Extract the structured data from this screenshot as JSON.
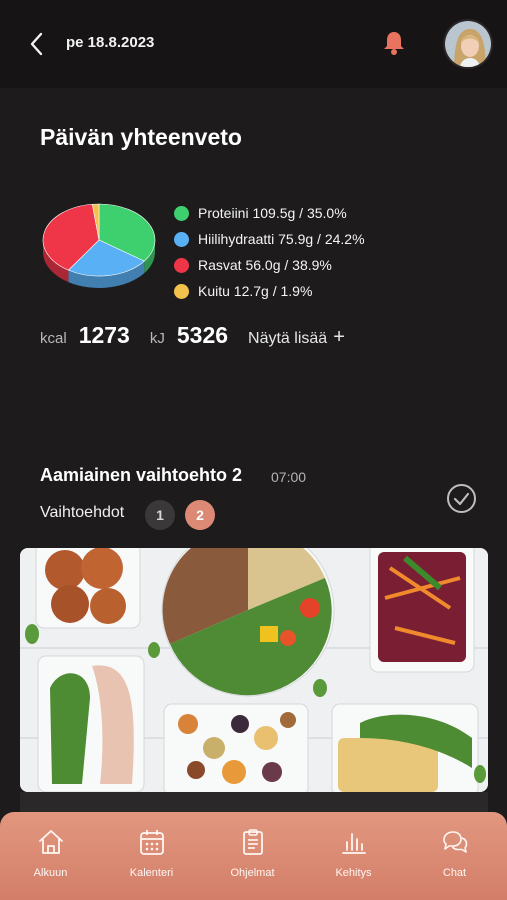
{
  "header": {
    "date": "pe 18.8.2023"
  },
  "summary": {
    "title": "Päivän yhteenveto",
    "macros": [
      {
        "label": "Proteiini 109.5g / 35.0%",
        "percent": 35.0,
        "color": "#3ecf6e"
      },
      {
        "label": "Hiilihydraatti 75.9g / 24.2%",
        "percent": 24.2,
        "color": "#5ab0f5"
      },
      {
        "label": "Rasvat 56.0g / 38.9%",
        "percent": 38.9,
        "color": "#ef3649"
      },
      {
        "label": "Kuitu 12.7g / 1.9%",
        "percent": 1.9,
        "color": "#f4c14c"
      }
    ],
    "kcal_label": "kcal",
    "kcal_value": "1273",
    "kj_label": "kJ",
    "kj_value": "5326",
    "show_more": "Näytä lisää"
  },
  "meal": {
    "title": "Aamiainen vaihtoehto 2",
    "time": "07:00",
    "options_label": "Vaihtoehdot",
    "options": [
      "1",
      "2"
    ],
    "selected_option": "2"
  },
  "nav": {
    "items": [
      {
        "label": "Alkuun",
        "icon": "home-icon"
      },
      {
        "label": "Kalenteri",
        "icon": "calendar-icon"
      },
      {
        "label": "Ohjelmat",
        "icon": "clipboard-icon"
      },
      {
        "label": "Kehitys",
        "icon": "bar-chart-icon"
      },
      {
        "label": "Chat",
        "icon": "chat-icon"
      }
    ]
  },
  "colors": {
    "accent": "#dc8a76",
    "background": "#1d1b1c",
    "nav_gradient_top": "#e2977f",
    "nav_gradient_bottom": "#d37e69"
  }
}
